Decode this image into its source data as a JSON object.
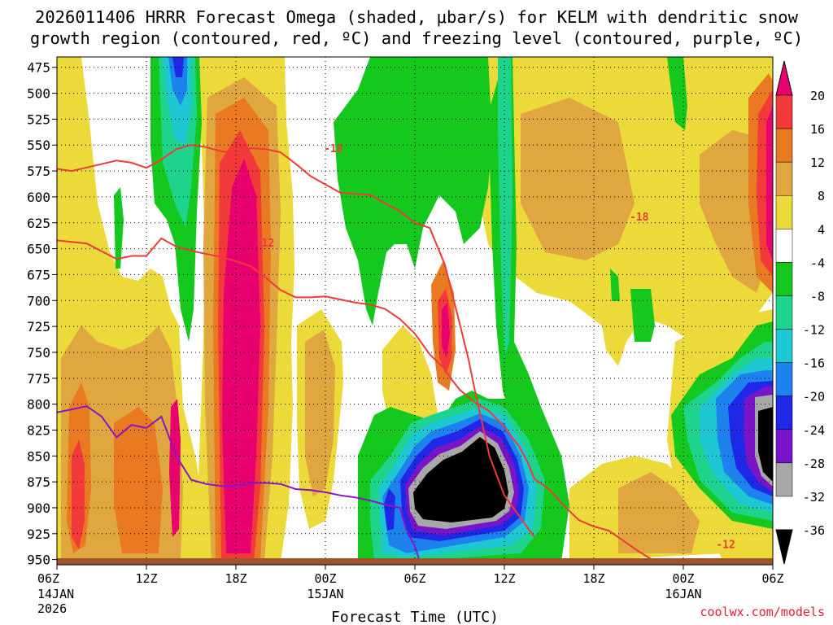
{
  "title": {
    "line1": "2026011406 HRRR Forecast Omega (shaded, μbar/s) for KELM with dendritic snow",
    "line2": "growth region (contoured, red, ºC) and freezing level (contoured, purple, ºC)"
  },
  "credit": "coolwx.com/models",
  "chart_data": {
    "type": "heatmap",
    "xlabel": "Forecast Time (UTC)",
    "x_ticks": [
      {
        "label": "06Z",
        "sub": [
          "14JAN",
          "2026"
        ],
        "hour": 0
      },
      {
        "label": "12Z",
        "sub": [],
        "hour": 6
      },
      {
        "label": "18Z",
        "sub": [],
        "hour": 12
      },
      {
        "label": "00Z",
        "sub": [
          "15JAN"
        ],
        "hour": 18
      },
      {
        "label": "06Z",
        "sub": [],
        "hour": 24
      },
      {
        "label": "12Z",
        "sub": [],
        "hour": 30
      },
      {
        "label": "18Z",
        "sub": [],
        "hour": 36
      },
      {
        "label": "00Z",
        "sub": [
          "16JAN"
        ],
        "hour": 42
      },
      {
        "label": "06Z",
        "sub": [],
        "hour": 48
      }
    ],
    "x_range_hours": [
      0,
      48
    ],
    "y_ticks": [
      475,
      500,
      525,
      550,
      575,
      600,
      625,
      650,
      675,
      700,
      725,
      750,
      775,
      800,
      825,
      850,
      875,
      900,
      925,
      950
    ],
    "y_range_hpa": [
      465,
      955
    ],
    "colorbar": {
      "levels": [
        20,
        16,
        12,
        8,
        4,
        -4,
        -8,
        -12,
        -16,
        -20,
        -24,
        -28,
        -32,
        -36
      ],
      "colors": [
        "#e8006e",
        "#f23a3a",
        "#ea7a22",
        "#e0a640",
        "#ecda3a",
        "#ffffff",
        "#14c81e",
        "#1ed48c",
        "#1ec8d2",
        "#1e82ee",
        "#1e28e6",
        "#7a14c8",
        "#a8a8a8",
        "#000000"
      ]
    },
    "contour_labels": [
      {
        "text": "-18",
        "hour": 17.9,
        "hpa": 553,
        "line": "upper"
      },
      {
        "text": "-18",
        "hour": 38.4,
        "hpa": 619,
        "line": "upper"
      },
      {
        "text": "-12",
        "hour": 13.3,
        "hpa": 644,
        "line": "lower"
      },
      {
        "text": "-12",
        "hour": 44.2,
        "hpa": 935,
        "line": "lower"
      }
    ],
    "dgz_upper_line": [
      [
        0,
        573
      ],
      [
        1,
        575
      ],
      [
        4,
        565
      ],
      [
        5,
        567
      ],
      [
        6,
        572
      ],
      [
        7,
        564
      ],
      [
        8,
        554
      ],
      [
        9,
        550
      ],
      [
        10,
        552
      ],
      [
        11,
        556
      ],
      [
        12,
        558
      ],
      [
        13,
        553
      ],
      [
        14,
        554
      ],
      [
        15,
        557
      ],
      [
        16,
        568
      ],
      [
        17,
        580
      ],
      [
        18,
        588
      ],
      [
        19,
        596
      ],
      [
        20,
        597
      ],
      [
        21,
        598
      ],
      [
        22,
        606
      ],
      [
        23,
        614
      ],
      [
        24,
        625
      ],
      [
        25,
        630
      ],
      [
        26,
        665
      ],
      [
        27,
        722
      ],
      [
        27.6,
        757
      ],
      [
        28,
        785
      ],
      [
        29,
        850
      ],
      [
        30,
        888
      ],
      [
        31,
        908
      ],
      [
        32,
        928
      ]
    ],
    "dgz_lower_line": [
      [
        0,
        642
      ],
      [
        2,
        645
      ],
      [
        4,
        660
      ],
      [
        5,
        657
      ],
      [
        6,
        657
      ],
      [
        7,
        640
      ],
      [
        8,
        648
      ],
      [
        9,
        652
      ],
      [
        10,
        655
      ],
      [
        11,
        658
      ],
      [
        12,
        662
      ],
      [
        13,
        667
      ],
      [
        14,
        678
      ],
      [
        15,
        690
      ],
      [
        16,
        697
      ],
      [
        17,
        697
      ],
      [
        18,
        696
      ],
      [
        19,
        699
      ],
      [
        20,
        702
      ],
      [
        21,
        704
      ],
      [
        22,
        708
      ],
      [
        23,
        718
      ],
      [
        24,
        732
      ],
      [
        25,
        752
      ],
      [
        26,
        766
      ],
      [
        26.4,
        775
      ],
      [
        27,
        786
      ],
      [
        28,
        798
      ],
      [
        29,
        807
      ],
      [
        30,
        822
      ],
      [
        31,
        841
      ],
      [
        31.6,
        857
      ],
      [
        32,
        872
      ],
      [
        33,
        882
      ],
      [
        34,
        898
      ],
      [
        35,
        912
      ],
      [
        36,
        918
      ],
      [
        37,
        922
      ],
      [
        38,
        932
      ],
      [
        39,
        942
      ],
      [
        40,
        951
      ],
      [
        41,
        955
      ]
    ],
    "freezing_line": [
      [
        0,
        808
      ],
      [
        1,
        805
      ],
      [
        2,
        802
      ],
      [
        3,
        812
      ],
      [
        4,
        832
      ],
      [
        5,
        820
      ],
      [
        6,
        823
      ],
      [
        7,
        812
      ],
      [
        8,
        850
      ],
      [
        9,
        873
      ],
      [
        10,
        877
      ],
      [
        11,
        879
      ],
      [
        12,
        879
      ],
      [
        13,
        876
      ],
      [
        14,
        876
      ],
      [
        15,
        877
      ],
      [
        16,
        882
      ],
      [
        17,
        883
      ],
      [
        18,
        885
      ],
      [
        19,
        888
      ],
      [
        20,
        890
      ],
      [
        21,
        893
      ],
      [
        22,
        897
      ],
      [
        23,
        900
      ],
      [
        23.4,
        920
      ],
      [
        24,
        937
      ],
      [
        24.4,
        955
      ]
    ]
  }
}
